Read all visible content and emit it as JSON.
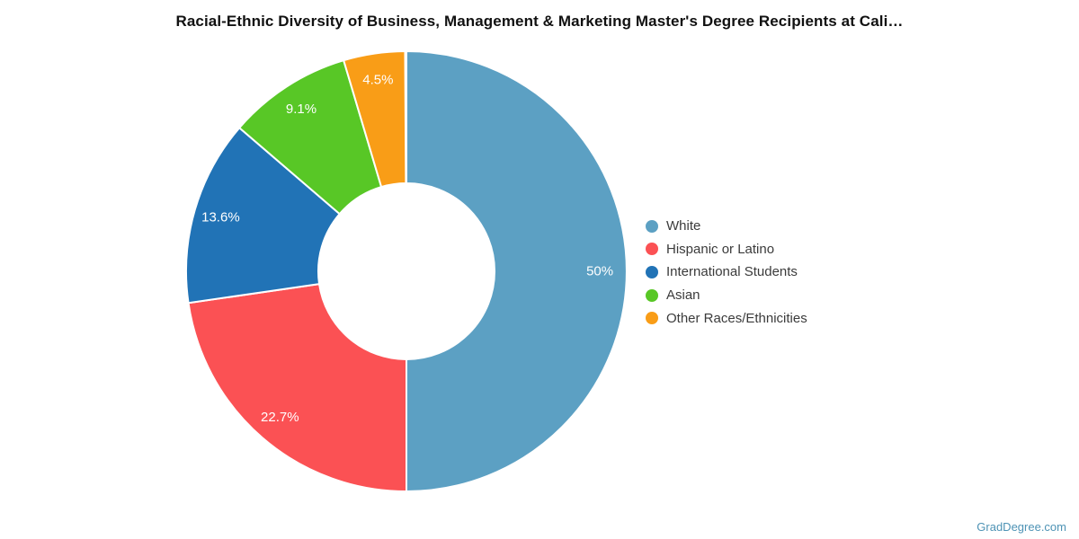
{
  "title": "Racial-Ethnic Diversity of Business, Management & Marketing Master's Degree Recipients at Cali…",
  "watermark": "GradDegree.com",
  "chart_data": {
    "type": "pie",
    "subtype": "donut",
    "title": "Racial-Ethnic Diversity of Business, Management & Marketing Master's Degree Recipients at Cali…",
    "labels": [
      "White",
      "Hispanic or Latino",
      "International Students",
      "Asian",
      "Other Races/Ethnicities"
    ],
    "values": [
      50,
      22.7,
      13.6,
      9.1,
      4.5
    ],
    "value_labels": [
      "50%",
      "22.7%",
      "13.6%",
      "9.1%",
      "4.5%"
    ],
    "colors": [
      "#5CA0C3",
      "#FB5154",
      "#2173B6",
      "#58C726",
      "#F99D17"
    ],
    "total": 100,
    "start_angle_deg": 0,
    "direction": "clockwise",
    "inner_radius_ratio": 0.4,
    "slice_border_color": "#ffffff",
    "label_color": "#ffffff",
    "legend_position": "right",
    "background": "#ffffff"
  }
}
